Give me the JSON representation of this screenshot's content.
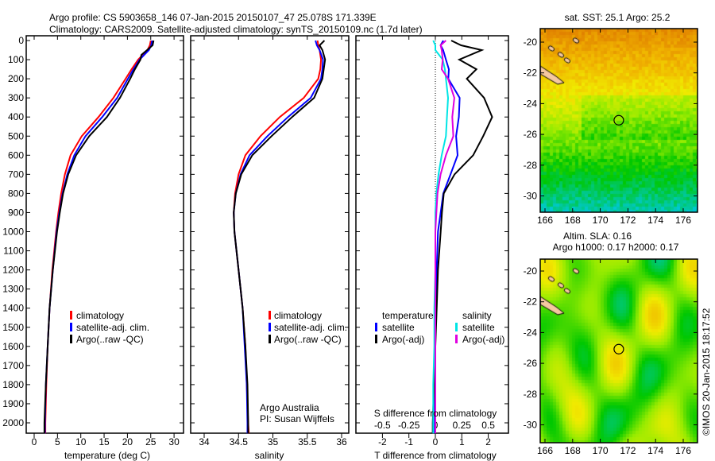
{
  "header": {
    "line1": "Argo profile: CS 5903658_146 07-Jan-2015 20150107_47 25.078S 171.339E",
    "line2": "Climatology: CARS2009. Satellite-adjusted climatology: synTS_20150109.nc (1.7d later)"
  },
  "credit": {
    "line1": "Argo Australia",
    "line2": "PI: Susan Wijffels",
    "stamp": "©IMOS 20-Jan-2015 18:17:52"
  },
  "colors": {
    "climatology": "#ff0000",
    "satellite": "#0000ff",
    "argo": "#000000",
    "sal_satellite": "#00e5e5",
    "sal_argo": "#e000e0"
  },
  "chart_data": [
    {
      "type": "line",
      "xlabel": "temperature (deg C)",
      "xlim": [
        -1.5,
        32
      ],
      "ylim": [
        2060,
        0
      ],
      "xticks": [
        "0",
        "5",
        "10",
        "15",
        "20",
        "25",
        "30"
      ],
      "yticks": [
        "0",
        "100",
        "200",
        "300",
        "400",
        "500",
        "600",
        "700",
        "800",
        "900",
        "1000",
        "1100",
        "1200",
        "1300",
        "1400",
        "1500",
        "1600",
        "1700",
        "1800",
        "1900",
        "2000"
      ],
      "depth": [
        0,
        25,
        50,
        75,
        100,
        150,
        200,
        300,
        400,
        500,
        600,
        700,
        800,
        900,
        1000,
        1200,
        1400,
        1600,
        1800,
        2000,
        2055
      ],
      "series": [
        {
          "name": "climatology",
          "values": [
            25.0,
            24.8,
            24.3,
            23.3,
            22.3,
            20.9,
            19.6,
            17.0,
            13.8,
            10.2,
            7.8,
            6.6,
            5.8,
            5.2,
            4.7,
            3.9,
            3.3,
            2.9,
            2.6,
            2.4,
            2.4
          ]
        },
        {
          "name": "satellite-adj. clim.",
          "values": [
            25.3,
            25.1,
            24.6,
            23.6,
            22.6,
            21.3,
            20.1,
            17.8,
            14.6,
            11.0,
            8.6,
            7.1,
            6.1,
            5.4,
            4.8,
            4.0,
            3.3,
            2.9,
            2.5,
            2.3,
            2.3
          ]
        },
        {
          "name": "Argo(..raw -QC)",
          "values": [
            25.6,
            25.4,
            24.2,
            23.0,
            22.8,
            21.6,
            20.6,
            18.4,
            15.6,
            11.8,
            9.0,
            7.3,
            6.2,
            5.5,
            4.9,
            4.0,
            3.3,
            2.9,
            2.5,
            2.2,
            2.2
          ]
        }
      ]
    },
    {
      "type": "line",
      "xlabel": "salinity",
      "xlim": [
        33.8,
        36.1
      ],
      "ylim": [
        2060,
        0
      ],
      "xticks": [
        "34",
        "34.5",
        "35",
        "35.5",
        "36"
      ],
      "depth": [
        0,
        25,
        50,
        100,
        150,
        200,
        300,
        400,
        500,
        600,
        700,
        800,
        900,
        1000,
        1200,
        1400,
        1600,
        1800,
        2000,
        2055
      ],
      "series": [
        {
          "name": "climatology",
          "values": [
            35.65,
            35.66,
            35.68,
            35.7,
            35.69,
            35.66,
            35.45,
            35.1,
            34.82,
            34.6,
            34.5,
            34.45,
            34.43,
            34.44,
            34.5,
            34.56,
            34.6,
            34.62,
            34.64,
            34.65
          ]
        },
        {
          "name": "satellite-adj. clim.",
          "values": [
            35.62,
            35.64,
            35.68,
            35.73,
            35.72,
            35.7,
            35.55,
            35.22,
            34.92,
            34.66,
            34.53,
            34.46,
            34.43,
            34.44,
            34.5,
            34.56,
            34.59,
            34.62,
            34.63,
            34.63
          ]
        },
        {
          "name": "Argo(..raw -QC)",
          "values": [
            35.75,
            35.68,
            35.72,
            35.76,
            35.74,
            35.72,
            35.6,
            35.28,
            34.98,
            34.7,
            34.54,
            34.46,
            34.43,
            34.44,
            34.5,
            34.56,
            34.6,
            34.63,
            34.64,
            34.64
          ]
        }
      ],
      "legend": [
        "climatology",
        "satellite-adj. clim.",
        "Argo(..raw -QC)"
      ]
    },
    {
      "type": "line",
      "xlabel": "T difference from climatology",
      "x2label": "S difference from climatology",
      "xlim": [
        -3,
        3
      ],
      "ylim": [
        2060,
        0
      ],
      "xticks": [
        "-2",
        "-1",
        "0",
        "1",
        "2"
      ],
      "x2ticks": [
        "-0.5",
        "-0.25",
        "0",
        "0.25",
        "0.5"
      ],
      "legend_titles": {
        "temperature": "temperature",
        "salinity": "salinity"
      },
      "legend": {
        "t_sat": "satellite",
        "t_argo": "Argo(-adj)",
        "s_sat": "satellite",
        "s_argo": "Argo(-adj)"
      },
      "depth": [
        0,
        25,
        50,
        100,
        150,
        200,
        300,
        400,
        500,
        600,
        700,
        800,
        900,
        1000,
        1200,
        1400,
        1600,
        1800,
        2000,
        2055
      ],
      "series": [
        {
          "name": "T satellite",
          "values": [
            0.3,
            0.3,
            0.4,
            0.3,
            0.5,
            0.6,
            0.9,
            0.8,
            0.9,
            0.8,
            0.5,
            0.3,
            0.2,
            0.1,
            0.05,
            0.0,
            0.0,
            -0.05,
            -0.05,
            -0.05
          ]
        },
        {
          "name": "T Argo(-adj)",
          "values": [
            0.6,
            1.0,
            1.7,
            0.8,
            1.4,
            1.0,
            1.6,
            1.9,
            1.6,
            1.3,
            0.7,
            0.4,
            0.25,
            0.2,
            0.1,
            0.05,
            0.0,
            -0.05,
            -0.1,
            -0.1
          ]
        },
        {
          "name": "S satellite",
          "values": [
            -0.02,
            0.0,
            0.0,
            0.07,
            0.09,
            0.1,
            0.12,
            0.11,
            0.1,
            0.06,
            0.03,
            0.01,
            0.0,
            0.0,
            0.0,
            -0.01,
            -0.01,
            -0.02,
            -0.02,
            -0.02
          ]
        },
        {
          "name": "S Argo(-adj)",
          "values": [
            0.1,
            0.05,
            0.06,
            0.07,
            0.06,
            0.12,
            0.18,
            0.16,
            0.17,
            0.1,
            0.05,
            0.02,
            0.01,
            0.0,
            0.0,
            0.0,
            0.0,
            0.0,
            0.0,
            0.0
          ]
        }
      ]
    },
    {
      "type": "heatmap",
      "title": "sat. SST: 25.1 Argo: 25.2",
      "xticks": [
        "166",
        "168",
        "170",
        "172",
        "174",
        "176"
      ],
      "yticks": [
        "-20",
        "-22",
        "-24",
        "-26",
        "-28",
        "-30"
      ],
      "profile_location": [
        171.339,
        -25.078
      ]
    },
    {
      "type": "heatmap",
      "title": "Altim. SLA: 0.16",
      "subtitle": "Argo h1000: 0.17 h2000: 0.17",
      "xticks": [
        "166",
        "168",
        "170",
        "172",
        "174",
        "176"
      ],
      "yticks": [
        "-20",
        "-22",
        "-24",
        "-26",
        "-28",
        "-30"
      ],
      "profile_location": [
        171.339,
        -25.078
      ]
    }
  ]
}
